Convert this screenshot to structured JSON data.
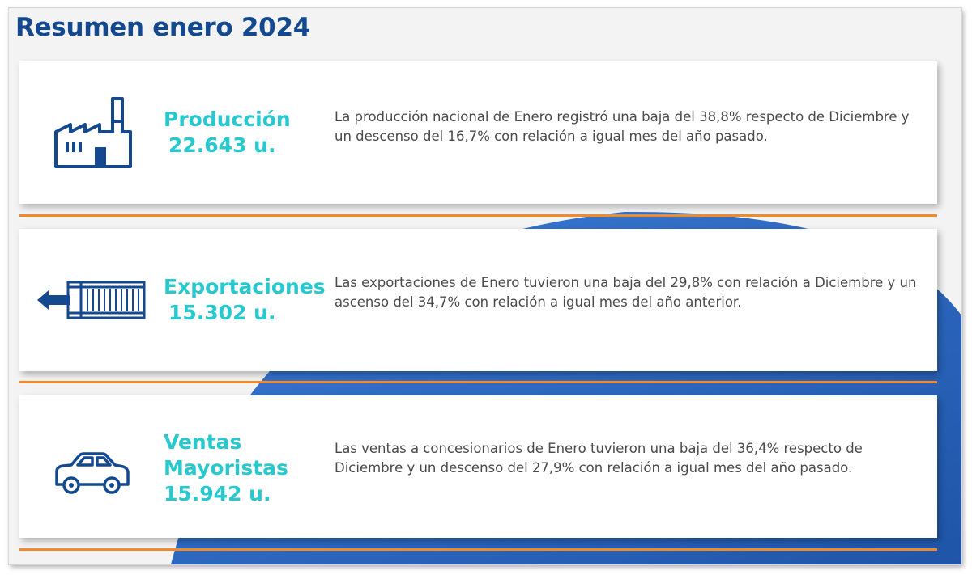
{
  "page": {
    "title": "Resumen enero 2024"
  },
  "cards": [
    {
      "label": "Producción",
      "value": "22.643 u.",
      "description": "La producción nacional de Enero registró una baja del 38,8% respecto de Diciembre y un descenso del 16,7% con relación a igual mes del año pasado.",
      "icon": "factory-icon"
    },
    {
      "label": "Exportaciones",
      "value": "15.302 u.",
      "description": "Las exportaciones de Enero tuvieron una baja del 29,8% con relación a Diciembre y un ascenso del 34,7% con relación a igual mes del año anterior.",
      "icon": "shipping-container-icon"
    },
    {
      "label": "Ventas Mayoristas",
      "value": "15.942 u.",
      "description": "Las ventas a concesionarios de Enero tuvieron una baja del 36,4% respecto de Diciembre y un descenso del 27,9% con relación a igual mes del año pasado.",
      "icon": "car-icon"
    }
  ],
  "colors": {
    "title": "#14498f",
    "accent_label": "#27c9cf",
    "icon": "#14498f",
    "separator": "#f08a2a",
    "background_shape": "#2f67c2"
  }
}
